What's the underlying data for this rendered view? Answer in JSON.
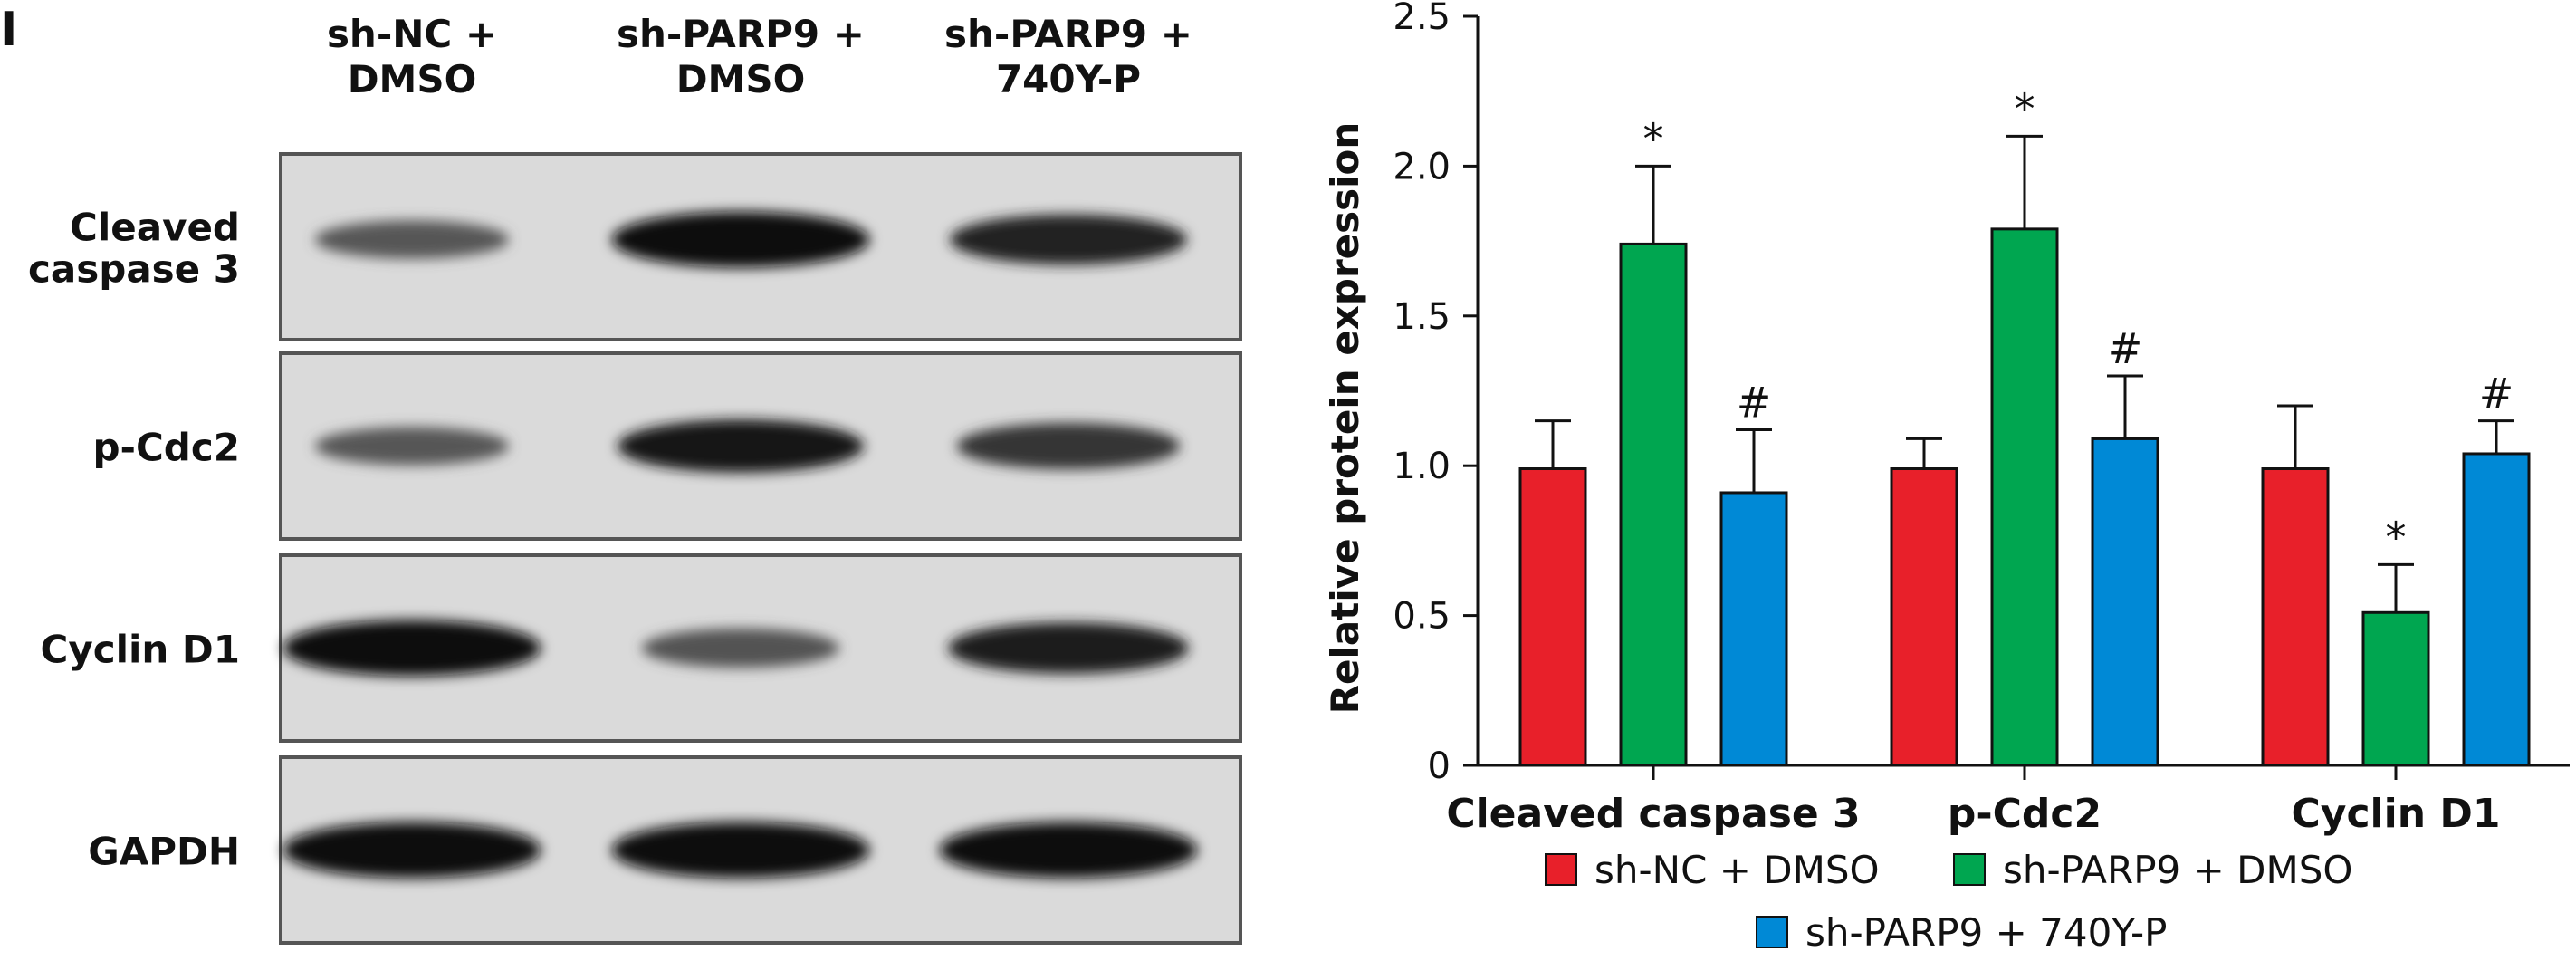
{
  "panel_label": "I",
  "blot": {
    "columns": [
      "sh-NC + DMSO",
      "sh-PARP9 + DMSO",
      "sh-PARP9 + 740Y-P"
    ],
    "column_lines": [
      [
        "sh-NC +",
        "DMSO"
      ],
      [
        "sh-PARP9 +",
        "DMSO"
      ],
      [
        "sh-PARP9 +",
        "740Y-P"
      ]
    ],
    "rows": [
      {
        "label_lines": [
          "Cleaved",
          "caspase 3"
        ],
        "intensities": [
          0.45,
          1.0,
          0.82
        ]
      },
      {
        "label_lines": [
          "p-Cdc2"
        ],
        "intensities": [
          0.45,
          0.9,
          0.7
        ]
      },
      {
        "label_lines": [
          "Cyclin D1"
        ],
        "intensities": [
          1.0,
          0.48,
          0.85
        ]
      },
      {
        "label_lines": [
          "GAPDH"
        ],
        "intensities": [
          1.0,
          1.0,
          1.0
        ]
      }
    ]
  },
  "chart_data": {
    "type": "bar",
    "categories": [
      "Cleaved caspase 3",
      "p-Cdc2",
      "Cyclin D1"
    ],
    "ylabel": "Relative protein expression",
    "xlabel": "",
    "ylim": [
      0,
      2.5
    ],
    "yticks": [
      0,
      0.5,
      1.0,
      1.5,
      2.0,
      2.5
    ],
    "ytick_labels": [
      "0",
      "0.5",
      "1.0",
      "1.5",
      "2.0",
      "2.5"
    ],
    "grid": false,
    "legend_position": "bottom",
    "series": [
      {
        "name": "sh-NC + DMSO",
        "color": "#e8202a",
        "values": [
          0.99,
          0.99,
          0.99
        ],
        "errors": [
          0.16,
          0.1,
          0.21
        ],
        "annotations": [
          "",
          "",
          ""
        ]
      },
      {
        "name": "sh-PARP9 + DMSO",
        "color": "#00a650",
        "values": [
          1.74,
          1.79,
          0.51
        ],
        "errors": [
          0.26,
          0.31,
          0.16
        ],
        "annotations": [
          "*",
          "*",
          "*"
        ]
      },
      {
        "name": "sh-PARP9 + 740Y-P",
        "color": "#0089d6",
        "values": [
          0.91,
          1.09,
          1.04
        ],
        "errors": [
          0.21,
          0.21,
          0.11
        ],
        "annotations": [
          "#",
          "#",
          "#"
        ]
      }
    ]
  }
}
